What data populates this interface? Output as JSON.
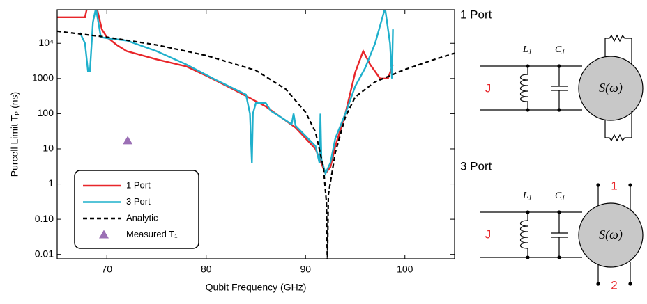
{
  "chart_data": {
    "type": "line",
    "xlabel": "Qubit Frequency (GHz)",
    "ylabel": "Purcell Limit Tₚ (ns)",
    "xlim": [
      65,
      105
    ],
    "xticks": [
      70,
      80,
      90,
      100
    ],
    "ylim": [
      0.0075,
      90000
    ],
    "yscale": "log",
    "yticks": [
      {
        "value": 0.01,
        "label": "0.01"
      },
      {
        "value": 0.1,
        "label": "0.10"
      },
      1,
      10,
      100,
      1000,
      {
        "value": 10000,
        "label": "10⁴"
      }
    ],
    "legend": "lower left",
    "series": [
      {
        "name": "1 Port",
        "color": "#e8262a",
        "style": "solid",
        "x": [
          65,
          67.8,
          68,
          69,
          69.5,
          70,
          71,
          72,
          75,
          78,
          80,
          83,
          86,
          89,
          91,
          92,
          92.5,
          93,
          94,
          95,
          95.8,
          96.5,
          97.5,
          98.3,
          98.8
        ],
        "values": [
          55000,
          55000,
          100000,
          100000,
          25000,
          15000,
          9000,
          6000,
          3500,
          2200,
          1200,
          450,
          160,
          40,
          10,
          2,
          3,
          12,
          100,
          1500,
          6000,
          2500,
          1000,
          1000,
          2500
        ]
      },
      {
        "name": "3 Port",
        "color": "#1fb0cc",
        "style": "solid",
        "x": [
          67.3,
          67.8,
          68.1,
          68.3,
          68.6,
          68.9,
          69.4,
          70,
          72,
          75,
          78,
          81,
          84,
          84.4,
          84.6,
          84.7,
          85,
          86,
          86.5,
          87.5,
          88.6,
          88.8,
          89,
          91,
          91.4,
          91.5,
          91.6,
          92,
          92.5,
          93,
          94,
          95,
          96,
          97,
          98,
          98.5,
          98.7,
          98.8
        ],
        "values": [
          20000,
          10000,
          1600,
          1600,
          40000,
          100000,
          15000,
          14000,
          12000,
          6000,
          2500,
          900,
          350,
          100,
          4,
          100,
          200,
          200,
          120,
          80,
          50,
          100,
          45,
          12,
          4,
          100,
          5,
          2,
          4,
          20,
          100,
          600,
          2000,
          10000,
          100000,
          10000,
          1000,
          25000
        ]
      },
      {
        "name": "Analytic",
        "color": "#000000",
        "style": "dashed",
        "x": [
          65,
          70,
          75,
          80,
          85,
          88,
          90,
          91,
          91.8,
          92.1,
          92.2,
          92.3,
          93,
          94,
          95,
          97,
          100,
          103,
          105
        ],
        "values": [
          22000,
          15000,
          9000,
          4500,
          1700,
          500,
          110,
          30,
          3,
          0.3,
          0.005,
          0.5,
          8,
          80,
          300,
          800,
          1800,
          3500,
          5200
        ]
      },
      {
        "name": "Measured T₁",
        "color": "#9b6fb5",
        "style": "marker",
        "x": [
          72.1
        ],
        "values": [
          17
        ]
      }
    ]
  },
  "diagrams": [
    {
      "title": "1 Port",
      "source": "J",
      "inductor": "L",
      "inductor_sub": "J",
      "capacitor": "C",
      "capacitor_sub": "J",
      "block": "S(ω)"
    },
    {
      "title": "3 Port",
      "source": "J",
      "inductor": "L",
      "inductor_sub": "J",
      "capacitor": "C",
      "capacitor_sub": "J",
      "block": "S(ω)",
      "ports": [
        "1",
        "2"
      ]
    }
  ]
}
